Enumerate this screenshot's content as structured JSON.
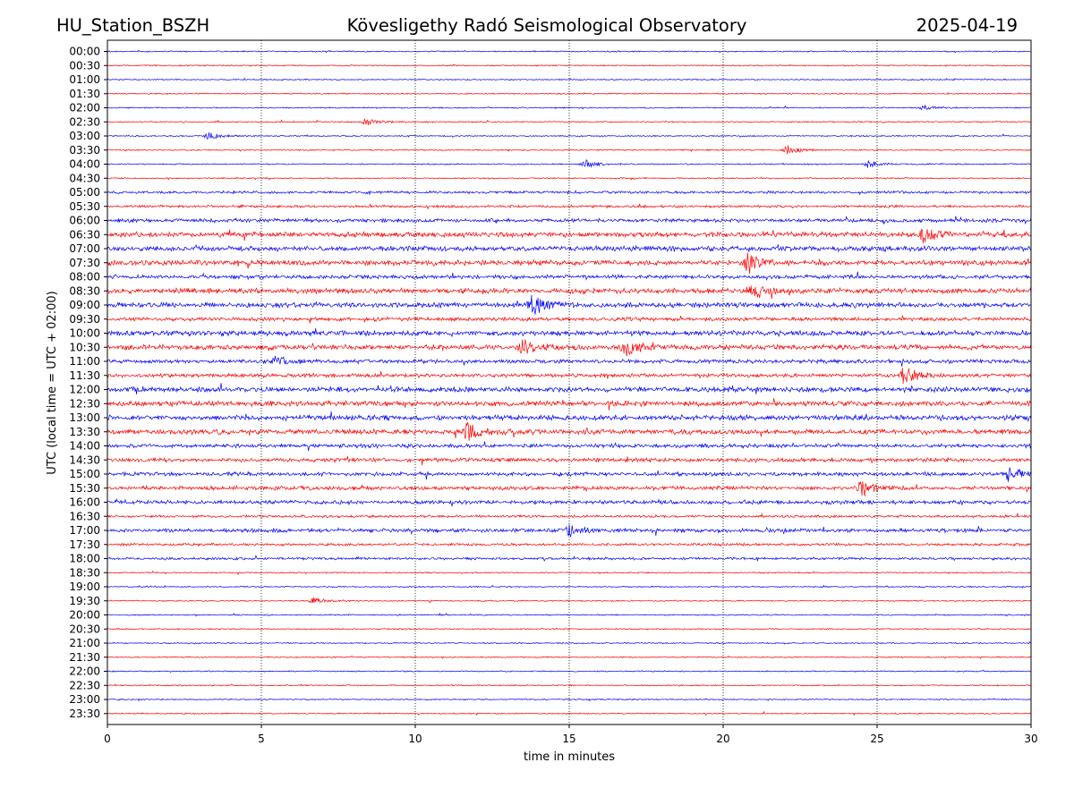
{
  "header": {
    "station": "HU_Station_BSZH",
    "observatory": "Kövesligethy Radó Seismological Observatory",
    "date": "2025-04-19"
  },
  "chart_data": {
    "type": "line",
    "title": "Kövesligethy Radó Seismological Observatory",
    "xlabel": "time in minutes",
    "ylabel": "UTC (local time = UTC + 02:00)",
    "xlim": [
      0,
      30
    ],
    "x_ticks": [
      "0",
      "5",
      "10",
      "15",
      "20",
      "25",
      "30"
    ],
    "grid": "vertical dotted lines at x = 5, 10, 15, 20, 25",
    "series_colors": [
      "#0000ff",
      "#ff0000"
    ],
    "row_labels": [
      "00:00",
      "00:30",
      "01:00",
      "01:30",
      "02:00",
      "02:30",
      "03:00",
      "03:30",
      "04:00",
      "04:30",
      "05:00",
      "05:30",
      "06:00",
      "06:30",
      "07:00",
      "07:30",
      "08:00",
      "08:30",
      "09:00",
      "09:30",
      "10:00",
      "10:30",
      "11:00",
      "11:30",
      "12:00",
      "12:30",
      "13:00",
      "13:30",
      "14:00",
      "14:30",
      "15:00",
      "15:30",
      "16:00",
      "16:30",
      "17:00",
      "17:30",
      "18:00",
      "18:30",
      "19:00",
      "19:30",
      "20:00",
      "20:30",
      "21:00",
      "21:30",
      "22:00",
      "22:30",
      "23:00",
      "23:30"
    ],
    "noise_level": [
      1,
      1,
      1,
      1,
      1,
      1,
      1,
      1,
      1,
      1,
      2,
      2,
      3,
      4,
      4,
      4,
      3,
      4,
      4,
      3,
      4,
      4,
      3,
      3,
      4,
      4,
      4,
      4,
      3,
      3,
      3,
      3,
      3,
      2,
      3,
      2,
      2,
      1,
      1,
      1,
      1,
      1,
      1,
      1,
      1,
      1,
      1,
      1
    ],
    "events": [
      {
        "row": "02:00",
        "minute": 26.5,
        "amplitude": 3
      },
      {
        "row": "02:30",
        "minute": 8.4,
        "amplitude": 4
      },
      {
        "row": "03:00",
        "minute": 3.3,
        "amplitude": 4
      },
      {
        "row": "03:30",
        "minute": 22.1,
        "amplitude": 5
      },
      {
        "row": "04:00",
        "minute": 15.5,
        "amplitude": 5
      },
      {
        "row": "04:00",
        "minute": 24.7,
        "amplitude": 4
      },
      {
        "row": "06:30",
        "minute": 26.5,
        "amplitude": 9
      },
      {
        "row": "07:30",
        "minute": 20.8,
        "amplitude": 12
      },
      {
        "row": "08:30",
        "minute": 21.0,
        "amplitude": 8
      },
      {
        "row": "09:00",
        "minute": 13.8,
        "amplitude": 12
      },
      {
        "row": "10:30",
        "minute": 13.5,
        "amplitude": 8
      },
      {
        "row": "10:30",
        "minute": 16.8,
        "amplitude": 10
      },
      {
        "row": "11:00",
        "minute": 5.4,
        "amplitude": 8
      },
      {
        "row": "11:30",
        "minute": 25.9,
        "amplitude": 10
      },
      {
        "row": "13:30",
        "minute": 11.7,
        "amplitude": 10
      },
      {
        "row": "15:00",
        "minute": 29.3,
        "amplitude": 9
      },
      {
        "row": "15:30",
        "minute": 24.5,
        "amplitude": 11
      },
      {
        "row": "17:00",
        "minute": 15.0,
        "amplitude": 7
      },
      {
        "row": "19:30",
        "minute": 6.7,
        "amplitude": 4
      }
    ]
  }
}
